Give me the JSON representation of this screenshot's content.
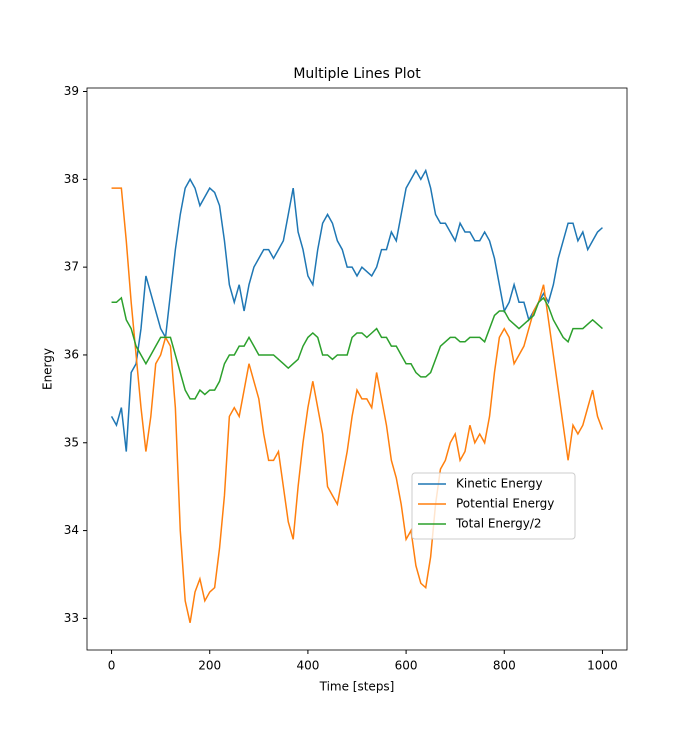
{
  "chart_data": {
    "type": "line",
    "title": "Multiple Lines Plot",
    "xlabel": "Time [steps]",
    "ylabel": "Energy",
    "x": [
      0,
      10,
      20,
      30,
      40,
      50,
      60,
      70,
      80,
      90,
      100,
      110,
      120,
      130,
      140,
      150,
      160,
      170,
      180,
      190,
      200,
      210,
      220,
      230,
      240,
      250,
      260,
      270,
      280,
      290,
      300,
      310,
      320,
      330,
      340,
      350,
      360,
      370,
      380,
      390,
      400,
      410,
      420,
      430,
      440,
      450,
      460,
      470,
      480,
      490,
      500,
      510,
      520,
      530,
      540,
      550,
      560,
      570,
      580,
      590,
      600,
      610,
      620,
      630,
      640,
      650,
      660,
      670,
      680,
      690,
      700,
      710,
      720,
      730,
      740,
      750,
      760,
      770,
      780,
      790,
      800,
      810,
      820,
      830,
      840,
      850,
      860,
      870,
      880,
      890,
      900,
      910,
      920,
      930,
      940,
      950,
      960,
      970,
      980,
      990,
      1000
    ],
    "series": [
      {
        "name": "Kinetic Energy",
        "color": "#1f77b4",
        "values": [
          35.3,
          35.2,
          35.4,
          34.9,
          35.8,
          35.9,
          36.3,
          36.9,
          36.7,
          36.5,
          36.3,
          36.2,
          36.7,
          37.2,
          37.6,
          37.9,
          38.0,
          37.9,
          37.7,
          37.8,
          37.9,
          37.85,
          37.7,
          37.3,
          36.8,
          36.6,
          36.8,
          36.5,
          36.8,
          37.0,
          37.1,
          37.2,
          37.2,
          37.1,
          37.2,
          37.3,
          37.6,
          37.9,
          37.4,
          37.2,
          36.9,
          36.8,
          37.2,
          37.5,
          37.6,
          37.5,
          37.3,
          37.2,
          37.0,
          37.0,
          36.9,
          37.0,
          36.95,
          36.9,
          37.0,
          37.2,
          37.2,
          37.4,
          37.3,
          37.6,
          37.9,
          38.0,
          38.1,
          38.0,
          38.1,
          37.9,
          37.6,
          37.5,
          37.5,
          37.4,
          37.3,
          37.5,
          37.4,
          37.4,
          37.3,
          37.3,
          37.4,
          37.3,
          37.1,
          36.8,
          36.5,
          36.6,
          36.8,
          36.6,
          36.6,
          36.4,
          36.5,
          36.6,
          36.7,
          36.6,
          36.8,
          37.1,
          37.3,
          37.5,
          37.5,
          37.3,
          37.4,
          37.2,
          37.3,
          37.4,
          37.45
        ]
      },
      {
        "name": "Potential Energy",
        "color": "#ff7f0e",
        "values": [
          37.9,
          37.9,
          37.9,
          37.3,
          36.6,
          36.0,
          35.4,
          34.9,
          35.3,
          35.9,
          36.0,
          36.2,
          36.1,
          35.4,
          34.0,
          33.2,
          32.95,
          33.3,
          33.45,
          33.2,
          33.3,
          33.35,
          33.8,
          34.4,
          35.3,
          35.4,
          35.3,
          35.6,
          35.9,
          35.7,
          35.5,
          35.1,
          34.8,
          34.8,
          34.9,
          34.5,
          34.1,
          33.9,
          34.5,
          35.0,
          35.4,
          35.7,
          35.4,
          35.1,
          34.5,
          34.4,
          34.3,
          34.6,
          34.9,
          35.3,
          35.6,
          35.5,
          35.5,
          35.4,
          35.8,
          35.5,
          35.2,
          34.8,
          34.6,
          34.3,
          33.9,
          34.0,
          33.6,
          33.4,
          33.35,
          33.7,
          34.3,
          34.7,
          34.8,
          35.0,
          35.1,
          34.8,
          34.9,
          35.2,
          35.0,
          35.1,
          35.0,
          35.3,
          35.8,
          36.2,
          36.3,
          36.2,
          35.9,
          36.0,
          36.1,
          36.3,
          36.5,
          36.6,
          36.8,
          36.4,
          36.0,
          35.6,
          35.2,
          34.8,
          35.2,
          35.1,
          35.2,
          35.4,
          35.6,
          35.3,
          35.15
        ]
      },
      {
        "name": "Total Energy/2",
        "color": "#2ca02c",
        "values": [
          36.6,
          36.6,
          36.65,
          36.4,
          36.3,
          36.1,
          36.0,
          35.9,
          36.0,
          36.1,
          36.2,
          36.2,
          36.2,
          36.0,
          35.8,
          35.6,
          35.5,
          35.5,
          35.6,
          35.55,
          35.6,
          35.6,
          35.7,
          35.9,
          36.0,
          36.0,
          36.1,
          36.1,
          36.2,
          36.1,
          36.0,
          36.0,
          36.0,
          36.0,
          35.95,
          35.9,
          35.85,
          35.9,
          35.95,
          36.1,
          36.2,
          36.25,
          36.2,
          36.0,
          36.0,
          35.95,
          36.0,
          36.0,
          36.0,
          36.2,
          36.25,
          36.25,
          36.2,
          36.25,
          36.3,
          36.2,
          36.2,
          36.1,
          36.1,
          36.0,
          35.9,
          35.9,
          35.8,
          35.75,
          35.75,
          35.8,
          35.95,
          36.1,
          36.15,
          36.2,
          36.2,
          36.15,
          36.15,
          36.2,
          36.2,
          36.2,
          36.15,
          36.3,
          36.45,
          36.5,
          36.5,
          36.4,
          36.35,
          36.3,
          36.35,
          36.4,
          36.45,
          36.6,
          36.65,
          36.55,
          36.4,
          36.3,
          36.2,
          36.15,
          36.3,
          36.3,
          36.3,
          36.35,
          36.4,
          36.35,
          36.3
        ]
      }
    ],
    "xlim": [
      -50,
      1050
    ],
    "ylim": [
      32.64,
      39.04
    ],
    "xticks": [
      0,
      200,
      400,
      600,
      800,
      1000
    ],
    "yticks": [
      33,
      34,
      35,
      36,
      37,
      38,
      39
    ],
    "legend": "center right"
  }
}
